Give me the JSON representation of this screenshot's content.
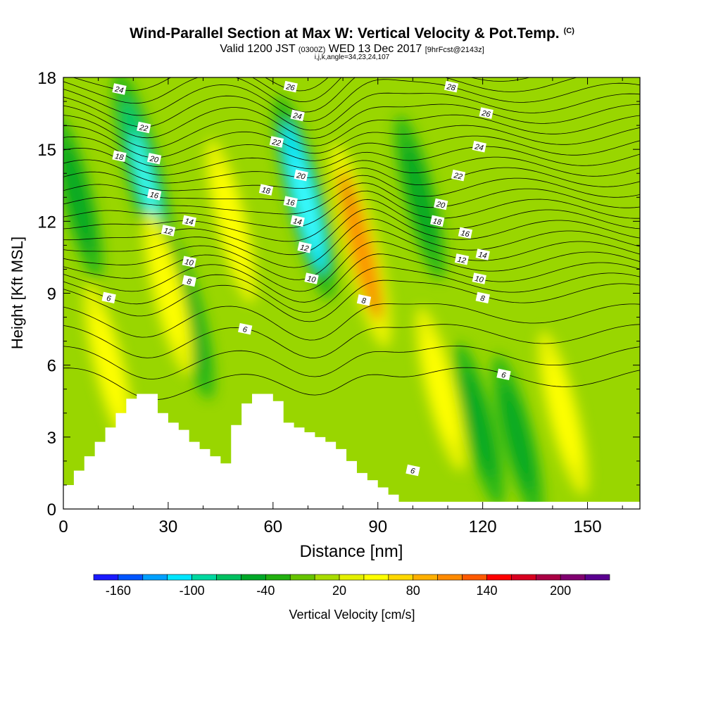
{
  "header": {
    "title": "Wind-Parallel Section at Max W: Vertical Velocity & Pot.Temp.",
    "copyright": "(C)",
    "valid_prefix": "Valid 1200 JST",
    "valid_zulu": "(0300Z)",
    "valid_date": "WED 13 Dec 2017",
    "forecast": "[9hrFcst@2143z]",
    "indices": "i,j,k,angle=34,23,24,107"
  },
  "chart_data": {
    "type": "heatmap",
    "xlabel": "Distance [nm]",
    "ylabel": "Height [Kft MSL]",
    "xlim": [
      0,
      165
    ],
    "ylim": [
      0,
      18
    ],
    "xticks": [
      0,
      30,
      60,
      90,
      120,
      150
    ],
    "yticks": [
      0,
      3,
      6,
      9,
      12,
      15,
      18
    ],
    "terrain": {
      "x": [
        0,
        3,
        6,
        9,
        12,
        15,
        18,
        21,
        24,
        27,
        30,
        33,
        36,
        39,
        42,
        45,
        48,
        51,
        54,
        57,
        60,
        63,
        66,
        69,
        72,
        75,
        78,
        81,
        84,
        87,
        90,
        93,
        96,
        99,
        102,
        165
      ],
      "height": [
        1.0,
        1.6,
        2.2,
        2.8,
        3.4,
        4.0,
        4.6,
        4.8,
        4.8,
        4.0,
        3.6,
        3.3,
        2.8,
        2.5,
        2.2,
        1.9,
        3.5,
        4.4,
        4.8,
        4.8,
        4.5,
        3.6,
        3.4,
        3.2,
        3.0,
        2.8,
        2.5,
        2.0,
        1.5,
        1.2,
        0.9,
        0.6,
        0.3,
        0.3,
        0.3,
        0.3
      ]
    },
    "updrafts": [
      {
        "x": 85,
        "z": 11,
        "w": 110
      },
      {
        "x": 48,
        "z": 12,
        "w": 40
      },
      {
        "x": 30,
        "z": 9,
        "w": 40
      },
      {
        "x": 13,
        "z": 6,
        "w": 35
      },
      {
        "x": 108,
        "z": 5,
        "w": 35
      },
      {
        "x": 143,
        "z": 4,
        "w": 30
      }
    ],
    "downdrafts": [
      {
        "x": 69,
        "z": 13,
        "w": -100
      },
      {
        "x": 23,
        "z": 14,
        "w": -80
      },
      {
        "x": 36,
        "z": 8,
        "w": -40
      },
      {
        "x": 102,
        "z": 13,
        "w": -40
      },
      {
        "x": 119,
        "z": 3.5,
        "w": -40
      },
      {
        "x": 4,
        "z": 13,
        "w": -40
      },
      {
        "x": 130,
        "z": 3,
        "w": -40
      }
    ],
    "theta_contour_labels": [
      {
        "x": 16,
        "z": 17.5,
        "v": "24"
      },
      {
        "x": 23,
        "z": 15.9,
        "v": "22"
      },
      {
        "x": 16,
        "z": 14.7,
        "v": "18"
      },
      {
        "x": 26,
        "z": 14.6,
        "v": "20"
      },
      {
        "x": 26,
        "z": 13.1,
        "v": "16"
      },
      {
        "x": 30,
        "z": 11.6,
        "v": "12"
      },
      {
        "x": 36,
        "z": 12.0,
        "v": "14"
      },
      {
        "x": 36,
        "z": 10.3,
        "v": "10"
      },
      {
        "x": 36,
        "z": 9.5,
        "v": "8"
      },
      {
        "x": 13,
        "z": 8.8,
        "v": "6"
      },
      {
        "x": 65,
        "z": 17.6,
        "v": "26"
      },
      {
        "x": 61,
        "z": 15.3,
        "v": "22"
      },
      {
        "x": 67,
        "z": 16.4,
        "v": "24"
      },
      {
        "x": 68,
        "z": 13.9,
        "v": "20"
      },
      {
        "x": 58,
        "z": 13.3,
        "v": "18"
      },
      {
        "x": 65,
        "z": 12.8,
        "v": "16"
      },
      {
        "x": 67,
        "z": 12.0,
        "v": "14"
      },
      {
        "x": 69,
        "z": 10.9,
        "v": "12"
      },
      {
        "x": 71,
        "z": 9.6,
        "v": "10"
      },
      {
        "x": 86,
        "z": 8.7,
        "v": "8"
      },
      {
        "x": 52,
        "z": 7.5,
        "v": "6"
      },
      {
        "x": 111,
        "z": 17.6,
        "v": "28"
      },
      {
        "x": 121,
        "z": 16.5,
        "v": "26"
      },
      {
        "x": 119,
        "z": 15.1,
        "v": "24"
      },
      {
        "x": 113,
        "z": 13.9,
        "v": "22"
      },
      {
        "x": 108,
        "z": 12.7,
        "v": "20"
      },
      {
        "x": 107,
        "z": 12.0,
        "v": "18"
      },
      {
        "x": 115,
        "z": 11.5,
        "v": "16"
      },
      {
        "x": 120,
        "z": 10.6,
        "v": "14"
      },
      {
        "x": 114,
        "z": 10.4,
        "v": "12"
      },
      {
        "x": 119,
        "z": 9.6,
        "v": "10"
      },
      {
        "x": 120,
        "z": 8.8,
        "v": "8"
      },
      {
        "x": 126,
        "z": 5.6,
        "v": "6"
      },
      {
        "x": 100,
        "z": 1.6,
        "v": "6"
      }
    ],
    "theta_levels": [
      6,
      8,
      10,
      12,
      14,
      16,
      18,
      20,
      22,
      24,
      26,
      28,
      30
    ]
  },
  "colorbar": {
    "title": "Vertical Velocity [cm/s]",
    "labels": [
      "-160",
      "-100",
      "-40",
      "20",
      "80",
      "140",
      "200"
    ],
    "colors": [
      "#1a1aff",
      "#0055ff",
      "#00a0ff",
      "#00e6ff",
      "#00d8a0",
      "#00c060",
      "#00a828",
      "#22b010",
      "#66c400",
      "#a8dc00",
      "#e4f000",
      "#ffff00",
      "#ffd800",
      "#ffb000",
      "#ff8a00",
      "#ff5a00",
      "#ff0000",
      "#d80020",
      "#aa0044",
      "#800070",
      "#5a0090"
    ]
  }
}
